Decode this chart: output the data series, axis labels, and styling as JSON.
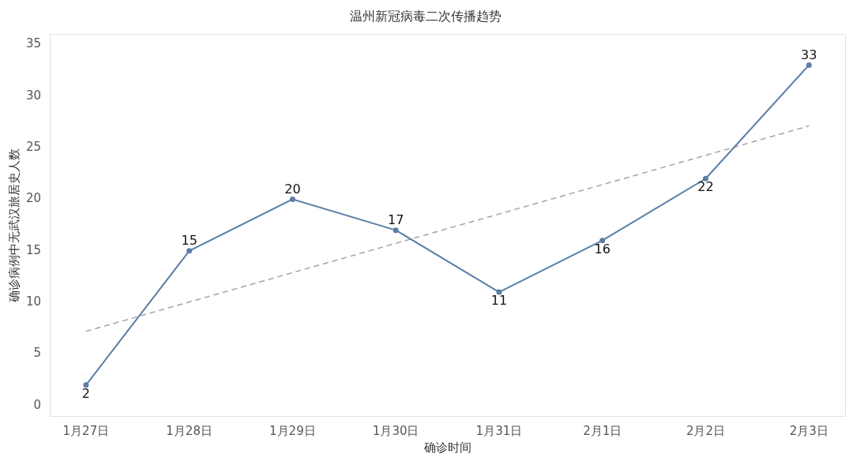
{
  "chart_data": {
    "type": "line",
    "title": "温州新冠病毒二次传播趋势",
    "xlabel": "确诊时间",
    "ylabel": "确诊病例中无武汉旅居史人数",
    "categories": [
      "1月27日",
      "1月28日",
      "1月29日",
      "1月30日",
      "1月31日",
      "2月1日",
      "2月2日",
      "2月3日"
    ],
    "series": [
      {
        "color": "#5b7ea5",
        "values": [
          2,
          15,
          20,
          17,
          11,
          16,
          22,
          33
        ],
        "value_labels": [
          "2",
          "15",
          "20",
          "17",
          "11",
          "16",
          "22",
          "33"
        ],
        "marker": "circle",
        "line_style": "solid"
      },
      {
        "type": "line",
        "x": [
          "1月27日",
          "2月3日"
        ],
        "values": [
          7.2,
          27.1
        ],
        "color": "#a7a1ab",
        "line_style": "dashed",
        "marker": "none"
      }
    ],
    "ylim": [
      -1,
      36
    ],
    "yticks": [
      0,
      5,
      10,
      15,
      20,
      25,
      30,
      35
    ],
    "grid": false,
    "legend": false
  }
}
